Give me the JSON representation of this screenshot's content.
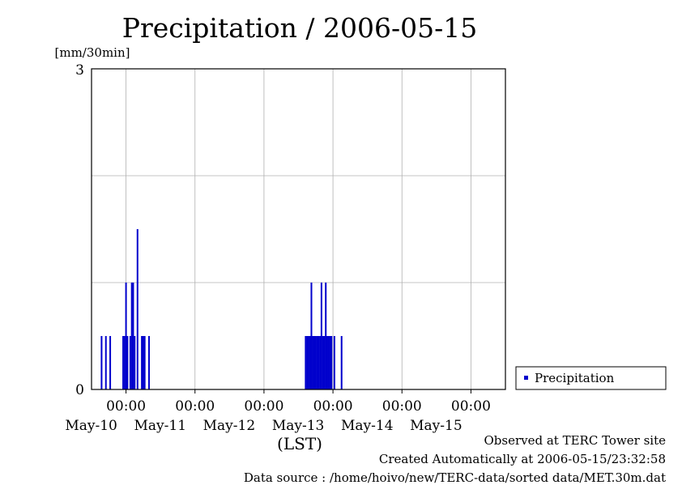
{
  "chart_data": {
    "type": "bar",
    "title": "Precipitation / 2006-05-15",
    "ylabel": "[mm/30min]",
    "xlabel": "(LST)",
    "ylim": [
      0,
      3
    ],
    "y_ticks": [
      "0",
      "3"
    ],
    "x_range": [
      "2006-05-09 12:00",
      "2006-05-15 12:00"
    ],
    "x_ticks": [
      {
        "time": "2006-05-10 00:00",
        "time_label": "00:00",
        "date_label": "May-10"
      },
      {
        "time": "2006-05-11 00:00",
        "time_label": "00:00",
        "date_label": "May-11"
      },
      {
        "time": "2006-05-12 00:00",
        "time_label": "00:00",
        "date_label": "May-12"
      },
      {
        "time": "2006-05-13 00:00",
        "time_label": "00:00",
        "date_label": "May-13"
      },
      {
        "time": "2006-05-14 00:00",
        "time_label": "00:00",
        "date_label": "May-14"
      },
      {
        "time": "2006-05-15 00:00",
        "time_label": "00:00",
        "date_label": "May-15"
      }
    ],
    "grid": true,
    "legend": {
      "position": "right",
      "entries": [
        {
          "name": "Precipitation",
          "color": "#0000cc"
        }
      ]
    },
    "series": [
      {
        "name": "Precipitation",
        "color": "#0000cc",
        "x": [
          "2006-05-09 15:30",
          "2006-05-09 17:00",
          "2006-05-09 18:30",
          "2006-05-09 23:00",
          "2006-05-09 23:30",
          "2006-05-10 00:00",
          "2006-05-10 00:30",
          "2006-05-10 01:30",
          "2006-05-10 02:00",
          "2006-05-10 02:30",
          "2006-05-10 03:00",
          "2006-05-10 04:00",
          "2006-05-10 05:30",
          "2006-05-10 06:00",
          "2006-05-10 06:30",
          "2006-05-10 08:00",
          "2006-05-12 14:30",
          "2006-05-12 15:00",
          "2006-05-12 15:30",
          "2006-05-12 16:00",
          "2006-05-12 16:30",
          "2006-05-12 17:00",
          "2006-05-12 17:30",
          "2006-05-12 18:00",
          "2006-05-12 18:30",
          "2006-05-12 19:00",
          "2006-05-12 19:30",
          "2006-05-12 20:00",
          "2006-05-12 20:30",
          "2006-05-12 21:00",
          "2006-05-12 21:30",
          "2006-05-12 22:00",
          "2006-05-12 22:30",
          "2006-05-12 23:00",
          "2006-05-12 23:30",
          "2006-05-13 00:30",
          "2006-05-13 03:00"
        ],
        "values": [
          0.5,
          0.5,
          0.5,
          0.5,
          0.5,
          1.0,
          0.5,
          0.5,
          1.0,
          1.0,
          0.5,
          1.5,
          0.5,
          0.5,
          0.5,
          0.5,
          0.5,
          0.5,
          0.5,
          0.5,
          1.0,
          0.5,
          0.5,
          0.5,
          0.5,
          0.5,
          0.5,
          1.0,
          0.5,
          0.5,
          1.0,
          0.5,
          0.5,
          0.5,
          0.5,
          0.5,
          0.5
        ]
      }
    ]
  },
  "footer": {
    "observed": "Observed at TERC Tower site",
    "created": "Created Automatically at 2006-05-15/23:32:58",
    "source": "Data source : /home/hoivo/new/TERC-data/sorted  data/MET.30m.dat"
  }
}
